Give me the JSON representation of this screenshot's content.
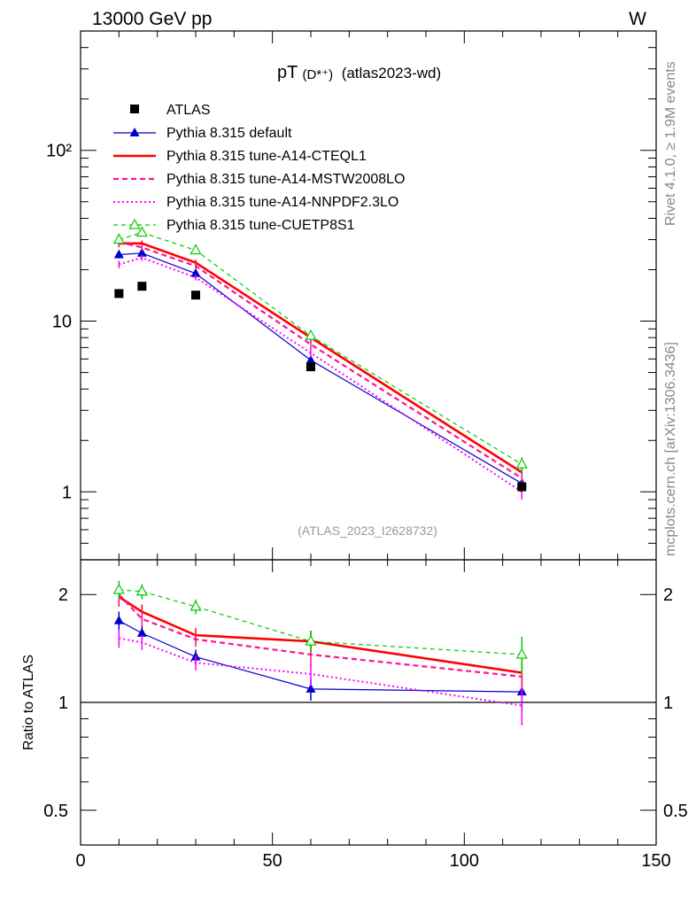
{
  "header": {
    "left": "13000 GeV pp",
    "right": "W"
  },
  "side_labels": {
    "rivet": "Rivet 4.1.0, ≥ 1.9M events",
    "mcplots": "mcplots.cern.ch [arXiv:1306.3436]"
  },
  "chart_data": {
    "type": "line",
    "title_main": "pT",
    "title_sub": "(D*⁺)",
    "title_tail": "(atlas2023-wd)",
    "watermark": "(ATLAS_2023_I2628732)",
    "xlim": [
      0,
      150
    ],
    "x_ticks": [
      "0",
      "50",
      "100",
      "150"
    ],
    "main_panel": {
      "yscale": "log",
      "ylim": [
        0.4,
        500
      ],
      "y_ticks": [
        "1",
        "10",
        "10²"
      ],
      "y_tick_values": [
        1,
        10,
        100
      ]
    },
    "ratio_panel": {
      "ylabel": "Ratio to ATLAS",
      "yscale": "log",
      "ylim": [
        0.4,
        2.5
      ],
      "y_ticks": [
        "0.5",
        "1",
        "2"
      ],
      "y_tick_values": [
        0.5,
        1,
        2
      ]
    },
    "x": [
      10,
      16,
      30,
      60,
      115
    ],
    "data": {
      "name": "ATLAS",
      "values": [
        14.5,
        16.0,
        14.2,
        5.4,
        1.07
      ]
    },
    "series": [
      {
        "name": "Pythia 8.315 default",
        "color": "#0000cc",
        "style": "solid",
        "marker": "triangle-filled",
        "values": [
          24.5,
          25.0,
          19.0,
          5.9,
          1.12
        ],
        "ratio": [
          1.69,
          1.56,
          1.34,
          1.09,
          1.07
        ]
      },
      {
        "name": "Pythia 8.315 tune-A14-CTEQL1",
        "color": "#ff0000",
        "style": "solid-thick",
        "marker": "none",
        "values": [
          28.5,
          28.5,
          22.0,
          8.0,
          1.3
        ],
        "ratio": [
          1.97,
          1.79,
          1.54,
          1.48,
          1.21
        ]
      },
      {
        "name": "Pythia 8.315 tune-A14-MSTW2008LO",
        "color": "#ff1493",
        "style": "dashed",
        "marker": "none",
        "values": [
          29.0,
          27.0,
          21.0,
          7.3,
          1.2
        ],
        "ratio": [
          2.0,
          1.71,
          1.5,
          1.36,
          1.18
        ]
      },
      {
        "name": "Pythia 8.315 tune-A14-NNPDF2.3LO",
        "color": "#ff00ff",
        "style": "dotted",
        "marker": "none",
        "values": [
          21.5,
          23.5,
          18.0,
          6.5,
          1.0
        ],
        "ratio": [
          1.51,
          1.47,
          1.29,
          1.2,
          0.98
        ]
      },
      {
        "name": "Pythia 8.315 tune-CUETP8S1",
        "color": "#00cc00",
        "style": "dashed-thin",
        "marker": "triangle-open",
        "values": [
          30.0,
          33.0,
          26.0,
          8.2,
          1.45
        ],
        "ratio": [
          2.06,
          2.04,
          1.85,
          1.48,
          1.36
        ]
      }
    ]
  }
}
